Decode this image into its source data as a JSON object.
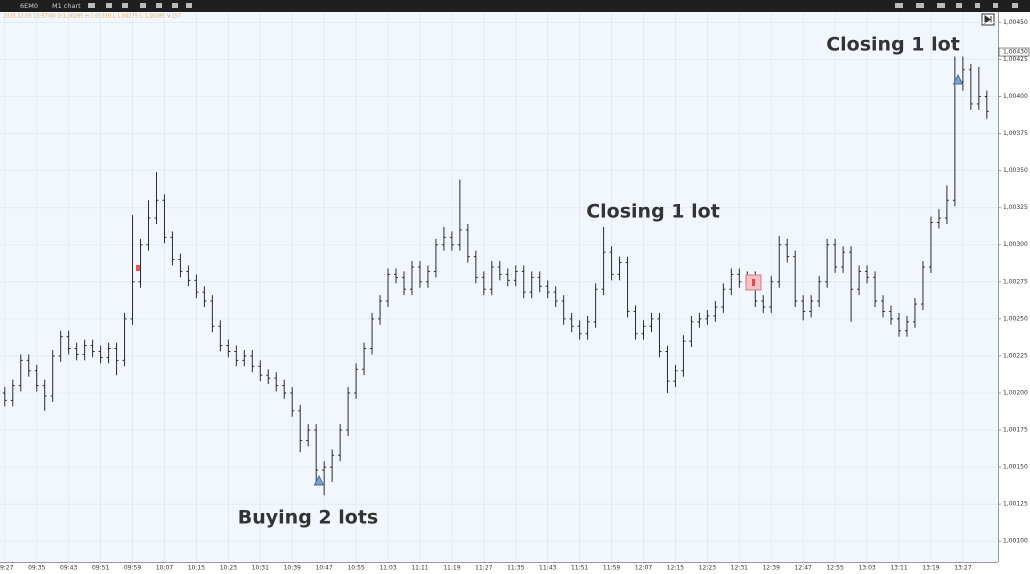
{
  "toolbar": {
    "symbol": "6EM0",
    "chart": "M1 chart",
    "info": "2020.12.05 13:57:00 O:1,00285 H:1,00310 L:1,00275 C:1,00285 V:157"
  },
  "chart_data": {
    "type": "ohlc",
    "categories": [
      "09:27",
      null,
      null,
      null,
      "09:35",
      null,
      null,
      null,
      "09:43",
      null,
      null,
      null,
      "09:51",
      null,
      null,
      null,
      "09:59",
      null,
      null,
      null,
      "10:07",
      null,
      null,
      null,
      "10:15",
      null,
      null,
      null,
      "10:23",
      null,
      null,
      null,
      "10:31",
      null,
      null,
      null,
      "10:39",
      null,
      null,
      null,
      "10:47",
      null,
      null,
      null,
      "10:55",
      null,
      null,
      null,
      "11:03",
      null,
      null,
      null,
      "11:11",
      null,
      null,
      null,
      "11:19",
      null,
      null,
      null,
      "11:27",
      null,
      null,
      null,
      "11:35",
      null,
      null,
      null,
      "11:43",
      null,
      null,
      null,
      "11:51",
      null,
      null,
      null,
      "11:59",
      null,
      null,
      null,
      "12:07",
      null,
      null,
      null,
      "12:15",
      null,
      null,
      null,
      "12:23",
      null,
      null,
      null,
      "12:31",
      null,
      null,
      null,
      "12:39",
      null,
      null,
      null,
      "12:47",
      null,
      null,
      null,
      "12:55",
      null,
      null,
      null,
      "13:03",
      null,
      null,
      null,
      "13:11",
      null,
      null,
      null,
      "13:19",
      null,
      null,
      null,
      "13:27",
      null,
      null,
      null
    ],
    "open": [
      1.002,
      1.00195,
      1.00205,
      1.00222,
      1.00215,
      1.00205,
      1.00198,
      1.00225,
      1.00238,
      1.0023,
      1.00226,
      1.00232,
      1.00228,
      1.00224,
      1.0023,
      1.00222,
      1.0025,
      1.00275,
      1.003,
      1.00318,
      1.0033,
      1.00305,
      1.0029,
      1.00282,
      1.00276,
      1.00268,
      1.00262,
      1.00245,
      1.00232,
      1.00228,
      1.00222,
      1.00225,
      1.00218,
      1.00212,
      1.0021,
      1.00205,
      1.002,
      1.00188,
      1.00168,
      1.00175,
      1.00148,
      1.0015,
      1.00158,
      1.00175,
      1.002,
      1.00216,
      1.0023,
      1.0025,
      1.00262,
      1.0028,
      1.00278,
      1.0027,
      1.00285,
      1.00275,
      1.00282,
      1.003,
      1.00305,
      1.003,
      1.0031,
      1.00292,
      1.00278,
      1.0027,
      1.00285,
      1.0028,
      1.00276,
      1.00282,
      1.00268,
      1.00278,
      1.00272,
      1.00268,
      1.00262,
      1.0025,
      1.00245,
      1.0024,
      1.00248,
      1.0027,
      1.00295,
      1.0028,
      1.00288,
      1.00255,
      1.0024,
      1.00245,
      1.0025,
      1.00228,
      1.00208,
      1.00215,
      1.00235,
      1.00248,
      1.0025,
      1.00252,
      1.00258,
      1.0027,
      1.0028,
      1.00275,
      1.00278,
      1.00262,
      1.00258,
      1.00275,
      1.003,
      1.00292,
      1.00262,
      1.00255,
      1.00262,
      1.00275,
      1.003,
      1.00285,
      1.00295,
      1.0027,
      1.00282,
      1.00278,
      1.00262,
      1.00255,
      1.0025,
      1.00242,
      1.00248,
      1.0026,
      1.00285,
      1.00315,
      1.00318,
      1.0033,
      1.0041,
      1.00418,
      1.00395,
      1.004
    ],
    "high": [
      1.00204,
      1.00209,
      1.00226,
      1.00226,
      1.00219,
      1.00209,
      1.00229,
      1.00242,
      1.00242,
      1.00234,
      1.00236,
      1.00236,
      1.00232,
      1.00234,
      1.00234,
      1.00254,
      1.0032,
      1.00304,
      1.0033,
      1.00349,
      1.00334,
      1.00309,
      1.00294,
      1.00286,
      1.0028,
      1.00272,
      1.00266,
      1.00249,
      1.00236,
      1.00232,
      1.00229,
      1.00229,
      1.00222,
      1.00216,
      1.00214,
      1.00209,
      1.00204,
      1.00192,
      1.00179,
      1.00179,
      1.00154,
      1.00162,
      1.00179,
      1.00204,
      1.0022,
      1.00234,
      1.00254,
      1.00266,
      1.00284,
      1.00284,
      1.00282,
      1.00289,
      1.00289,
      1.00286,
      1.00304,
      1.00312,
      1.00309,
      1.00344,
      1.00314,
      1.00296,
      1.00282,
      1.00289,
      1.00289,
      1.00284,
      1.00286,
      1.00286,
      1.00282,
      1.00282,
      1.00276,
      1.00272,
      1.00266,
      1.00254,
      1.00249,
      1.00252,
      1.00274,
      1.00312,
      1.00299,
      1.00292,
      1.00292,
      1.00259,
      1.00249,
      1.00254,
      1.00254,
      1.00232,
      1.00219,
      1.00239,
      1.00252,
      1.00254,
      1.00256,
      1.00262,
      1.00274,
      1.00284,
      1.00284,
      1.00282,
      1.00282,
      1.00266,
      1.00279,
      1.00306,
      1.00304,
      1.00296,
      1.00266,
      1.00266,
      1.00279,
      1.00304,
      1.00304,
      1.00299,
      1.00299,
      1.00286,
      1.00286,
      1.00282,
      1.00266,
      1.00259,
      1.00254,
      1.00252,
      1.00264,
      1.00289,
      1.00319,
      1.00324,
      1.0034,
      1.00427,
      1.00427,
      1.00422,
      1.0042,
      1.00404
    ],
    "low": [
      1.00191,
      1.00191,
      1.00201,
      1.00211,
      1.00201,
      1.00188,
      1.00194,
      1.00221,
      1.00226,
      1.00222,
      1.00222,
      1.00224,
      1.0022,
      1.0022,
      1.00212,
      1.00218,
      1.00246,
      1.00271,
      1.00296,
      1.00314,
      1.00301,
      1.00286,
      1.00278,
      1.00272,
      1.00264,
      1.00258,
      1.00241,
      1.00228,
      1.00224,
      1.00218,
      1.00218,
      1.00214,
      1.00208,
      1.00206,
      1.00201,
      1.00196,
      1.00184,
      1.0016,
      1.00164,
      1.0014,
      1.00131,
      1.0014,
      1.00154,
      1.00171,
      1.00196,
      1.00212,
      1.00226,
      1.00246,
      1.00258,
      1.00274,
      1.00266,
      1.00266,
      1.00271,
      1.00271,
      1.00278,
      1.00296,
      1.00296,
      1.00296,
      1.00288,
      1.00274,
      1.00266,
      1.00266,
      1.00276,
      1.00272,
      1.00272,
      1.00264,
      1.00264,
      1.00268,
      1.00264,
      1.00258,
      1.00246,
      1.00241,
      1.00236,
      1.00236,
      1.00244,
      1.00266,
      1.00276,
      1.00276,
      1.00251,
      1.00236,
      1.00236,
      1.00241,
      1.00224,
      1.002,
      1.00204,
      1.00211,
      1.00231,
      1.00244,
      1.00246,
      1.00248,
      1.00254,
      1.00266,
      1.00271,
      1.00271,
      1.00258,
      1.00254,
      1.00254,
      1.00271,
      1.00288,
      1.00258,
      1.00249,
      1.00251,
      1.00258,
      1.00271,
      1.00281,
      1.00281,
      1.00248,
      1.00266,
      1.00274,
      1.00258,
      1.00251,
      1.00246,
      1.00238,
      1.00238,
      1.00244,
      1.00256,
      1.00281,
      1.00311,
      1.00314,
      1.00326,
      1.00404,
      1.00391,
      1.00391,
      1.00385
    ],
    "close": [
      1.00195,
      1.00205,
      1.00222,
      1.00215,
      1.00205,
      1.00198,
      1.00225,
      1.00238,
      1.0023,
      1.00226,
      1.00232,
      1.00228,
      1.00224,
      1.0023,
      1.00222,
      1.0025,
      1.00275,
      1.003,
      1.00318,
      1.0033,
      1.00305,
      1.0029,
      1.00282,
      1.00276,
      1.00268,
      1.00262,
      1.00245,
      1.00232,
      1.00228,
      1.00222,
      1.00225,
      1.00218,
      1.00212,
      1.0021,
      1.00205,
      1.002,
      1.00188,
      1.00168,
      1.00175,
      1.00148,
      1.0015,
      1.00158,
      1.00175,
      1.002,
      1.00216,
      1.0023,
      1.0025,
      1.00262,
      1.0028,
      1.00278,
      1.0027,
      1.00285,
      1.00275,
      1.00282,
      1.003,
      1.00305,
      1.003,
      1.0031,
      1.00292,
      1.00278,
      1.0027,
      1.00285,
      1.0028,
      1.00276,
      1.00282,
      1.00268,
      1.00278,
      1.00272,
      1.00268,
      1.00262,
      1.0025,
      1.00245,
      1.0024,
      1.00248,
      1.0027,
      1.00295,
      1.0028,
      1.00288,
      1.00255,
      1.0024,
      1.00245,
      1.0025,
      1.00228,
      1.00208,
      1.00215,
      1.00235,
      1.00248,
      1.0025,
      1.00252,
      1.00258,
      1.0027,
      1.0028,
      1.00275,
      1.00278,
      1.00262,
      1.00258,
      1.00275,
      1.003,
      1.00292,
      1.00262,
      1.00255,
      1.00262,
      1.00275,
      1.003,
      1.00285,
      1.00295,
      1.0027,
      1.00282,
      1.00278,
      1.00262,
      1.00255,
      1.0025,
      1.00242,
      1.00248,
      1.0026,
      1.00285,
      1.00315,
      1.00318,
      1.0033,
      1.0041,
      1.00418,
      1.00395,
      1.004,
      1.0039
    ],
    "color": "#2b2b2b",
    "ylim": [
      1.00086,
      1.00457
    ],
    "yticks": [
      {
        "value": 1.001,
        "label": "1,00100"
      },
      {
        "value": 1.00125,
        "label": "1,00125"
      },
      {
        "value": 1.0015,
        "label": "1,00150"
      },
      {
        "value": 1.00175,
        "label": "1,00175"
      },
      {
        "value": 1.002,
        "label": "1,00200"
      },
      {
        "value": 1.00225,
        "label": "1,00225"
      },
      {
        "value": 1.0025,
        "label": "1,00250"
      },
      {
        "value": 1.00275,
        "label": "1,00275"
      },
      {
        "value": 1.003,
        "label": "1,00300"
      },
      {
        "value": 1.00325,
        "label": "1,00325"
      },
      {
        "value": 1.0035,
        "label": "1,00350"
      },
      {
        "value": 1.00375,
        "label": "1,00375"
      },
      {
        "value": 1.004,
        "label": "1,00400"
      },
      {
        "value": 1.00425,
        "label": "1,00425"
      },
      {
        "value": 1.0045,
        "label": "1,00450"
      }
    ],
    "last_price": {
      "value": 1.0043,
      "label": "1,00430"
    },
    "grid": true,
    "annotations": [
      "Closing 1 lot",
      "Closing 1 lot",
      "Buying 2 lots"
    ]
  }
}
